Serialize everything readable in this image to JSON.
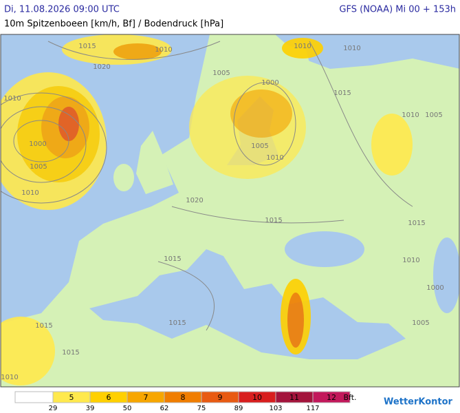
{
  "header": {
    "left": "Di, 11.08.2026 09:00 UTC",
    "right": "GFS (NOAA) Mi 00 + 153h",
    "subtitle": "10m Spitzenboeen [km/h, Bf] / Bodendruck [hPa]"
  },
  "isobar_labels": [
    "1015",
    "1010",
    "1020",
    "1010",
    "1005",
    "1000",
    "1000",
    "1005",
    "1010",
    "1005",
    "1010",
    "1010",
    "1010",
    "1015",
    "1010",
    "1005",
    "1020",
    "1015",
    "1015",
    "1015",
    "1010",
    "1000",
    "1015",
    "1015",
    "1015",
    "1005",
    "1010"
  ],
  "legend": {
    "colors": [
      "#ffffff",
      "#ffe94d",
      "#ffd000",
      "#f7a600",
      "#f07d00",
      "#e85a12",
      "#d81e1e",
      "#a3143c",
      "#c2185b"
    ],
    "bft": [
      "5",
      "6",
      "7",
      "8",
      "9",
      "10",
      "11",
      "12"
    ],
    "unit": "Bft.",
    "kmh": [
      "29",
      "39",
      "50",
      "62",
      "75",
      "89",
      "103",
      "117"
    ]
  },
  "logo": "WetterKontor"
}
